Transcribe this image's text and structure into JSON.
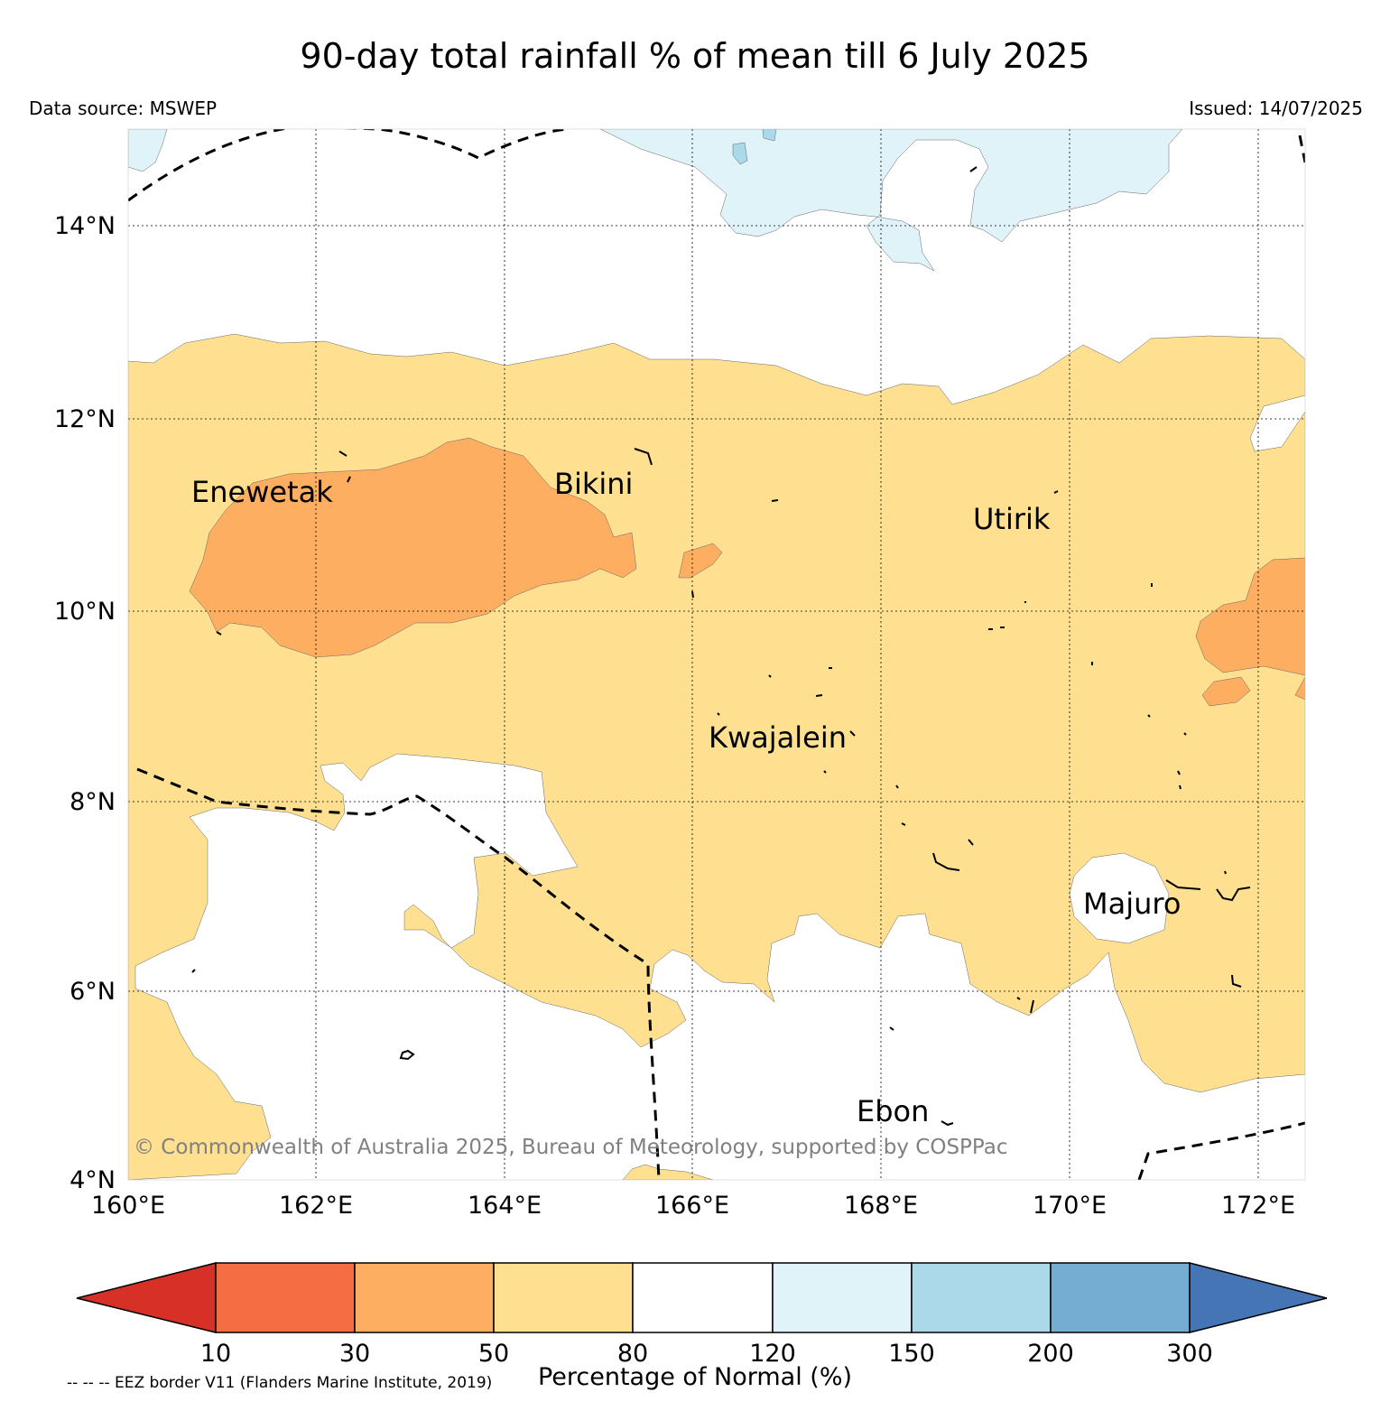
{
  "title": "90-day total rainfall % of mean till 6 July 2025",
  "data_source": "Data source: MSWEP",
  "issued": "Issued: 14/07/2025",
  "copyright": "© Commonwealth of Australia 2025, Bureau of Meteorology, supported by COSPPac",
  "lat_labels": [
    "14°N",
    "12°N",
    "10°N",
    "8°N",
    "6°N",
    "4°N"
  ],
  "lon_labels": [
    "160°E",
    "162°E",
    "164°E",
    "166°E",
    "168°E",
    "170°E",
    "172°E"
  ],
  "places": [
    {
      "name": "Enewetak"
    },
    {
      "name": "Bikini"
    },
    {
      "name": "Utirik"
    },
    {
      "name": "Kwajalein"
    },
    {
      "name": "Majuro"
    },
    {
      "name": "Ebon"
    }
  ],
  "colorbar": {
    "ticks": [
      "10",
      "30",
      "50",
      "80",
      "120",
      "150",
      "200",
      "300"
    ],
    "colors": [
      "#d73027",
      "#f46d43",
      "#fdae61",
      "#fee090",
      "#ffffff",
      "#e0f3f8",
      "#abd9e9",
      "#74add1",
      "#4575b4"
    ],
    "label": "Percentage of Normal (%)"
  },
  "footnote": "-- -- -- EEZ border V11 (Flanders Marine Institute, 2019)"
}
